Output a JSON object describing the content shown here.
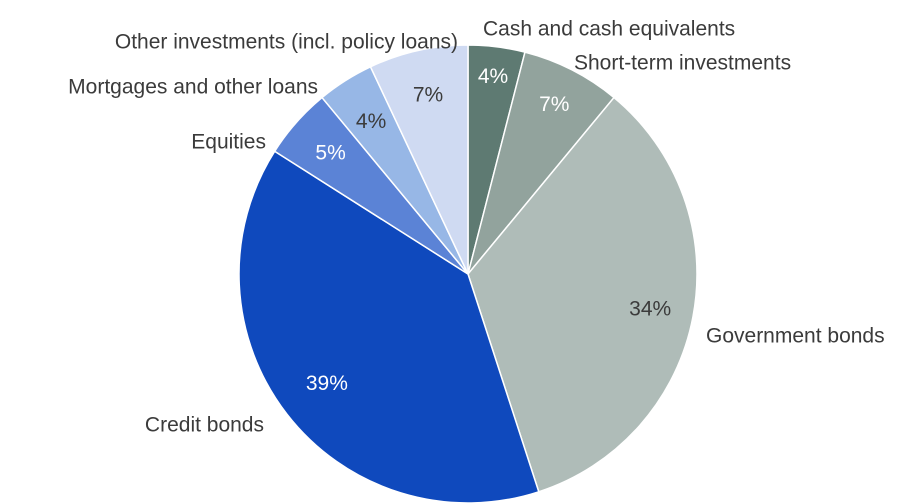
{
  "chart_data": {
    "type": "pie",
    "title": "",
    "start": "12 o'clock",
    "direction": "clockwise",
    "legend": "none (labels placed outside slices)",
    "slices": [
      {
        "label": "Cash and cash equivalents",
        "value": 4,
        "value_label": "4%",
        "color": "#5e7a72",
        "value_text_color": "#ffffff"
      },
      {
        "label": "Short-term investments",
        "value": 7,
        "value_label": "7%",
        "color": "#92a39d",
        "value_text_color": "#ffffff"
      },
      {
        "label": "Government bonds",
        "value": 34,
        "value_label": "34%",
        "color": "#afbcb8",
        "value_text_color": "#3b3b3b"
      },
      {
        "label": "Credit bonds",
        "value": 39,
        "value_label": "39%",
        "color": "#0f49bd",
        "value_text_color": "#ffffff"
      },
      {
        "label": "Equities",
        "value": 5,
        "value_label": "5%",
        "color": "#5b83d6",
        "value_text_color": "#ffffff"
      },
      {
        "label": "Mortgages and other loans",
        "value": 4,
        "value_label": "4%",
        "color": "#97b7e6",
        "value_text_color": "#3b3b3b"
      },
      {
        "label": "Other investments (incl. policy loans)",
        "value": 7,
        "value_label": "7%",
        "color": "#cfdaf2",
        "value_text_color": "#3b3b3b"
      }
    ]
  }
}
